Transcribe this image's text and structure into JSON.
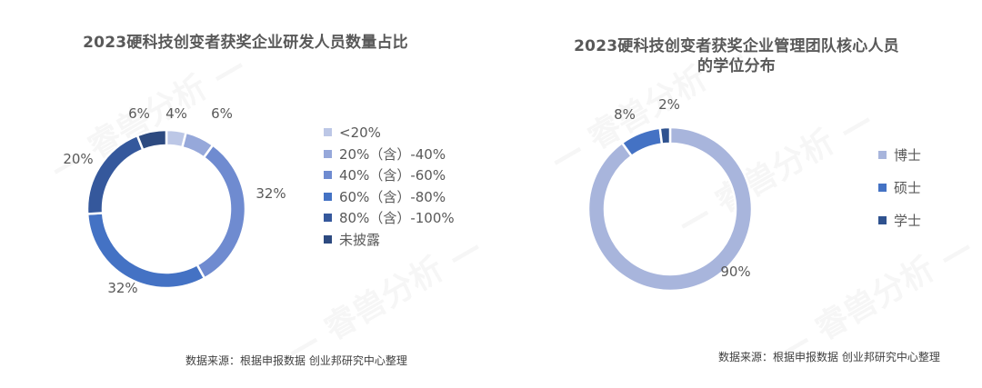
{
  "watermark": "— 睿兽分析 —",
  "chart_data": [
    {
      "type": "pie",
      "variant": "donut",
      "title": "2023硬科技创变者获奖企业研发人员数量占比",
      "categories": [
        "<20%",
        "20%（含）-40%",
        "40%（含）-60%",
        "60%（含）-80%",
        "80%（含）-100%",
        "未披露"
      ],
      "values": [
        4,
        6,
        32,
        32,
        20,
        6
      ],
      "value_labels": [
        "4%",
        "6%",
        "32%",
        "32%",
        "20%",
        "6%"
      ],
      "colors": [
        "#bcc7e6",
        "#96a8da",
        "#6f8bd0",
        "#4472c4",
        "#35589c",
        "#2d4a80"
      ],
      "legend_position": "right",
      "source": "数据来源：根据申报数据 创业邦研究中心整理"
    },
    {
      "type": "pie",
      "variant": "donut",
      "title": "2023硬科技创变者获奖企业管理团队核心人员的学位分布",
      "title_lines": [
        "2023硬科技创变者获奖企业管理团队核心人员",
        "的学位分布"
      ],
      "categories": [
        "博士",
        "硕士",
        "学士"
      ],
      "values": [
        90,
        8,
        2
      ],
      "value_labels": [
        "90%",
        "8%",
        "2%"
      ],
      "colors": [
        "#a8b5dc",
        "#4472c4",
        "#2f528f"
      ],
      "legend_position": "right",
      "source": "数据来源：根据申报数据 创业邦研究中心整理"
    }
  ]
}
